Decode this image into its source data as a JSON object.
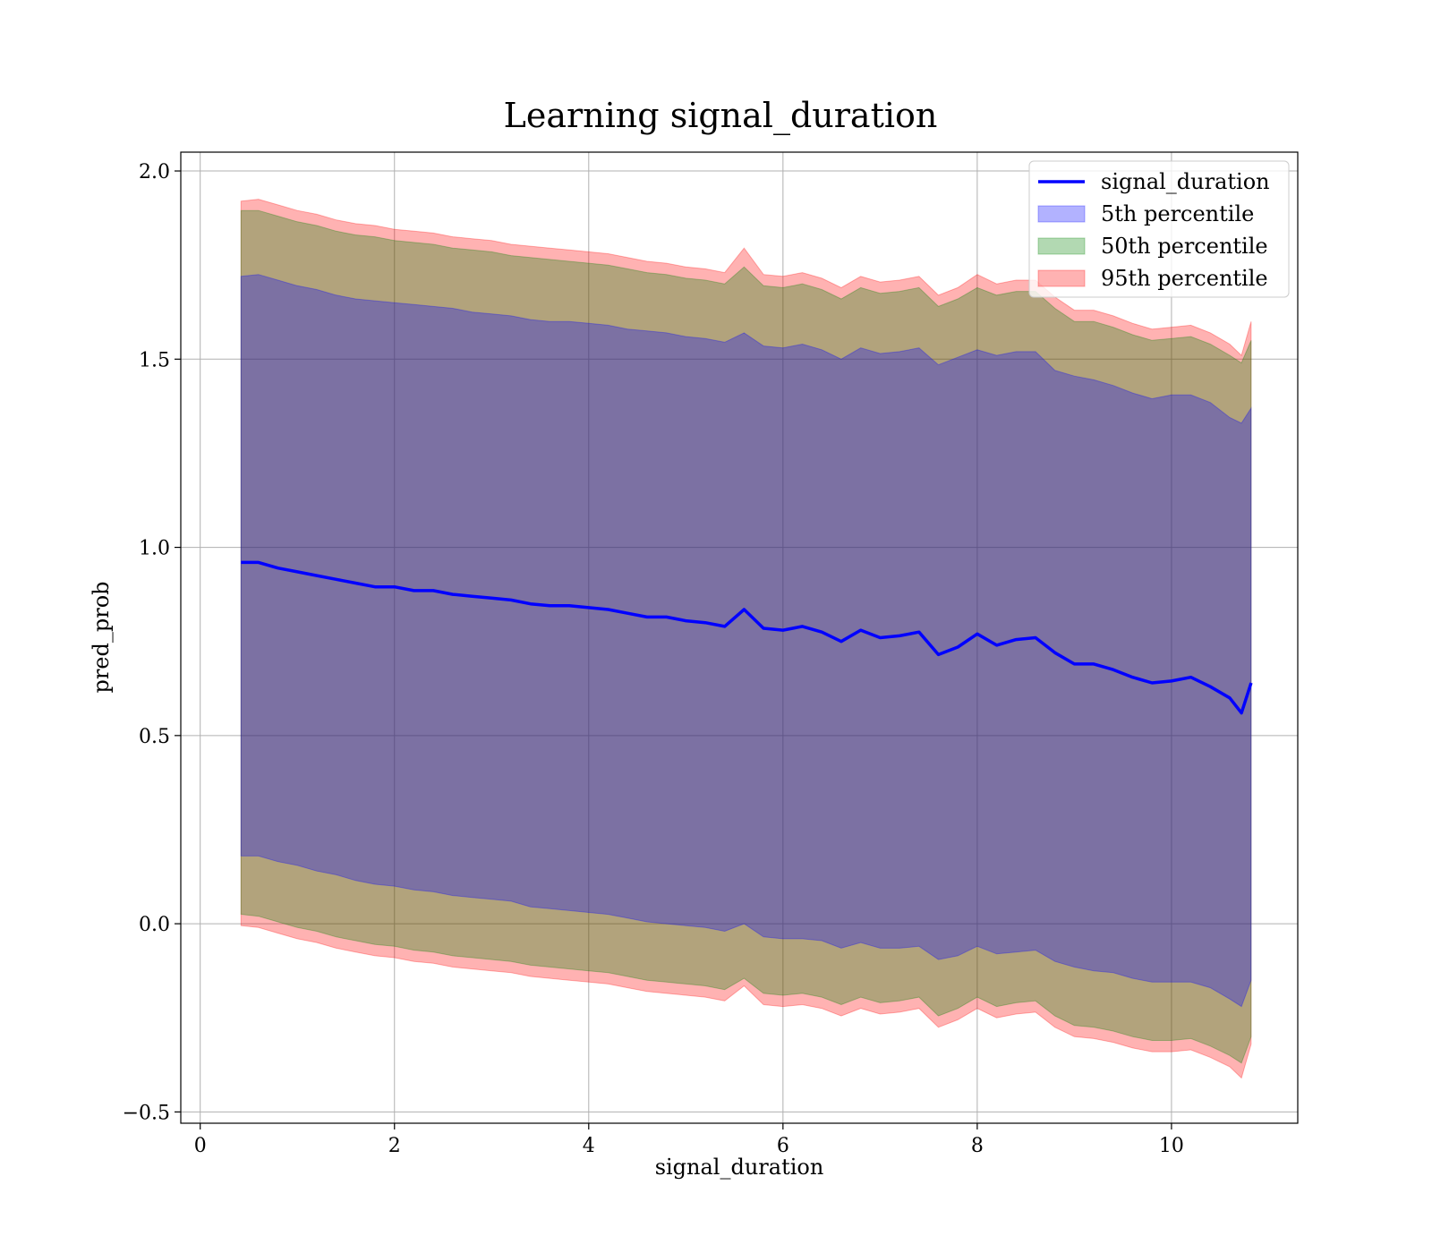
{
  "chart_data": {
    "type": "line",
    "title": "Learning signal_duration",
    "xlabel": "signal_duration",
    "ylabel": "pred_prob",
    "xlim": [
      -0.2,
      11.3
    ],
    "ylim": [
      -0.53,
      2.05
    ],
    "xticks": [
      0,
      2,
      4,
      6,
      8,
      10
    ],
    "yticks": [
      -0.5,
      0.0,
      0.5,
      1.0,
      1.5,
      2.0
    ],
    "xtick_labels": [
      "0",
      "2",
      "4",
      "6",
      "8",
      "10"
    ],
    "ytick_labels": [
      "−0.5",
      "0.0",
      "0.5",
      "1.0",
      "1.5",
      "2.0"
    ],
    "grid": true,
    "legend_position": "top-right",
    "x": [
      0.42,
      0.6,
      0.8,
      1.0,
      1.2,
      1.4,
      1.6,
      1.8,
      2.0,
      2.2,
      2.4,
      2.6,
      2.8,
      3.0,
      3.2,
      3.4,
      3.6,
      3.8,
      4.0,
      4.2,
      4.4,
      4.6,
      4.8,
      5.0,
      5.2,
      5.4,
      5.6,
      5.8,
      6.0,
      6.2,
      6.4,
      6.6,
      6.8,
      7.0,
      7.2,
      7.4,
      7.6,
      7.8,
      8.0,
      8.2,
      8.4,
      8.6,
      8.8,
      9.0,
      9.2,
      9.4,
      9.6,
      9.8,
      10.0,
      10.2,
      10.4,
      10.6,
      10.72,
      10.82
    ],
    "series": [
      {
        "name": "signal_duration",
        "type": "line",
        "color": "#0000ff",
        "values": [
          0.96,
          0.96,
          0.945,
          0.935,
          0.925,
          0.915,
          0.905,
          0.895,
          0.895,
          0.885,
          0.885,
          0.875,
          0.87,
          0.865,
          0.86,
          0.85,
          0.845,
          0.845,
          0.84,
          0.835,
          0.825,
          0.815,
          0.815,
          0.805,
          0.8,
          0.79,
          0.835,
          0.785,
          0.78,
          0.79,
          0.775,
          0.75,
          0.78,
          0.76,
          0.765,
          0.775,
          0.715,
          0.735,
          0.77,
          0.74,
          0.755,
          0.76,
          0.72,
          0.69,
          0.69,
          0.675,
          0.655,
          0.64,
          0.645,
          0.655,
          0.63,
          0.6,
          0.56,
          0.64
        ]
      },
      {
        "name": "5th percentile",
        "type": "band",
        "color": "#0000ff",
        "upper": [
          1.72,
          1.725,
          1.71,
          1.695,
          1.685,
          1.67,
          1.66,
          1.655,
          1.65,
          1.645,
          1.64,
          1.635,
          1.625,
          1.62,
          1.615,
          1.605,
          1.6,
          1.6,
          1.595,
          1.59,
          1.58,
          1.575,
          1.57,
          1.56,
          1.555,
          1.545,
          1.57,
          1.535,
          1.53,
          1.54,
          1.525,
          1.5,
          1.53,
          1.515,
          1.52,
          1.53,
          1.485,
          1.505,
          1.525,
          1.51,
          1.52,
          1.52,
          1.47,
          1.455,
          1.445,
          1.43,
          1.41,
          1.395,
          1.405,
          1.405,
          1.385,
          1.345,
          1.33,
          1.37
        ],
        "lower": [
          0.18,
          0.18,
          0.165,
          0.155,
          0.14,
          0.13,
          0.115,
          0.105,
          0.1,
          0.09,
          0.085,
          0.075,
          0.07,
          0.065,
          0.06,
          0.045,
          0.04,
          0.035,
          0.03,
          0.025,
          0.015,
          0.005,
          -0.0,
          -0.005,
          -0.01,
          -0.02,
          0.0,
          -0.035,
          -0.04,
          -0.04,
          -0.045,
          -0.065,
          -0.05,
          -0.065,
          -0.065,
          -0.06,
          -0.095,
          -0.085,
          -0.06,
          -0.08,
          -0.075,
          -0.07,
          -0.1,
          -0.115,
          -0.125,
          -0.13,
          -0.145,
          -0.155,
          -0.155,
          -0.155,
          -0.17,
          -0.2,
          -0.22,
          -0.15
        ]
      },
      {
        "name": "50th percentile",
        "type": "band",
        "color": "#008000",
        "upper": [
          1.895,
          1.895,
          1.88,
          1.865,
          1.855,
          1.84,
          1.83,
          1.825,
          1.815,
          1.81,
          1.805,
          1.795,
          1.79,
          1.785,
          1.775,
          1.77,
          1.765,
          1.76,
          1.755,
          1.75,
          1.74,
          1.73,
          1.725,
          1.715,
          1.71,
          1.7,
          1.745,
          1.695,
          1.69,
          1.7,
          1.685,
          1.66,
          1.69,
          1.675,
          1.68,
          1.69,
          1.64,
          1.66,
          1.69,
          1.67,
          1.68,
          1.68,
          1.635,
          1.6,
          1.6,
          1.585,
          1.565,
          1.55,
          1.555,
          1.56,
          1.54,
          1.51,
          1.49,
          1.55
        ],
        "lower": [
          0.025,
          0.02,
          0.005,
          -0.01,
          -0.02,
          -0.035,
          -0.045,
          -0.055,
          -0.06,
          -0.07,
          -0.075,
          -0.085,
          -0.09,
          -0.095,
          -0.1,
          -0.11,
          -0.115,
          -0.12,
          -0.125,
          -0.13,
          -0.14,
          -0.15,
          -0.155,
          -0.16,
          -0.165,
          -0.175,
          -0.145,
          -0.185,
          -0.19,
          -0.185,
          -0.195,
          -0.215,
          -0.195,
          -0.21,
          -0.205,
          -0.195,
          -0.245,
          -0.225,
          -0.195,
          -0.22,
          -0.21,
          -0.205,
          -0.245,
          -0.27,
          -0.275,
          -0.285,
          -0.3,
          -0.31,
          -0.31,
          -0.305,
          -0.325,
          -0.35,
          -0.37,
          -0.3
        ]
      },
      {
        "name": "95th percentile",
        "type": "band",
        "color": "#ff0000",
        "upper": [
          1.92,
          1.925,
          1.91,
          1.895,
          1.885,
          1.87,
          1.86,
          1.855,
          1.845,
          1.84,
          1.835,
          1.825,
          1.82,
          1.815,
          1.805,
          1.8,
          1.795,
          1.79,
          1.785,
          1.78,
          1.77,
          1.76,
          1.755,
          1.745,
          1.74,
          1.73,
          1.795,
          1.725,
          1.72,
          1.73,
          1.715,
          1.69,
          1.72,
          1.705,
          1.71,
          1.72,
          1.67,
          1.69,
          1.725,
          1.7,
          1.71,
          1.71,
          1.665,
          1.63,
          1.63,
          1.615,
          1.595,
          1.58,
          1.585,
          1.59,
          1.57,
          1.54,
          1.51,
          1.6
        ],
        "lower": [
          -0.005,
          -0.01,
          -0.025,
          -0.04,
          -0.05,
          -0.065,
          -0.075,
          -0.085,
          -0.09,
          -0.1,
          -0.105,
          -0.115,
          -0.12,
          -0.125,
          -0.13,
          -0.14,
          -0.145,
          -0.15,
          -0.155,
          -0.16,
          -0.17,
          -0.18,
          -0.185,
          -0.19,
          -0.195,
          -0.205,
          -0.165,
          -0.215,
          -0.22,
          -0.215,
          -0.225,
          -0.245,
          -0.225,
          -0.24,
          -0.235,
          -0.225,
          -0.275,
          -0.255,
          -0.225,
          -0.25,
          -0.24,
          -0.235,
          -0.275,
          -0.3,
          -0.305,
          -0.315,
          -0.33,
          -0.34,
          -0.34,
          -0.335,
          -0.355,
          -0.38,
          -0.41,
          -0.32
        ]
      }
    ]
  }
}
